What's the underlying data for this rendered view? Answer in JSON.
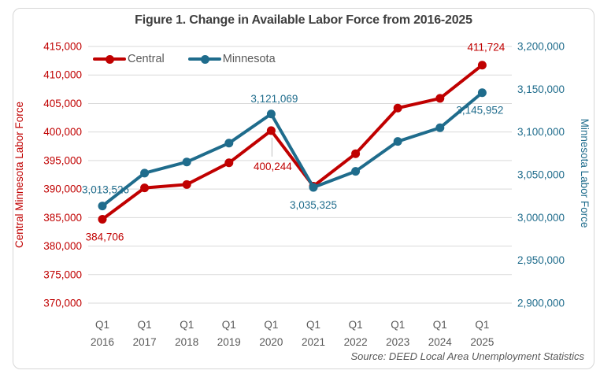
{
  "chart_data": {
    "type": "line",
    "title": "Figure 1. Change in Available Labor Force from 2016-2025",
    "source": "Source: DEED Local Area Unemployment Statistics",
    "x_prefix": "Q1",
    "categories": [
      "2016",
      "2017",
      "2018",
      "2019",
      "2020",
      "2021",
      "2022",
      "2023",
      "2024",
      "2025"
    ],
    "grid": true,
    "legend_position": "top-left",
    "colors": {
      "grid": "#D9D9D9",
      "text_gray": "#595959",
      "leader": "#BFBFBF"
    },
    "left_axis": {
      "title": "Central Minnesota Labor Force",
      "min": 370000,
      "max": 415000,
      "step": 5000,
      "color": "#C00000"
    },
    "right_axis": {
      "title": "Minnesota Labor Force",
      "min": 2900000,
      "max": 3200000,
      "step": 50000,
      "color": "#1F6C8C"
    },
    "series": [
      {
        "name": "Central",
        "axis": "left",
        "color": "#C00000",
        "values": [
          384706,
          390200,
          390800,
          394600,
          400244,
          390500,
          396200,
          404200,
          405900,
          411724
        ],
        "labeled_points": [
          {
            "index": 0,
            "text": "384,706",
            "dx": 3,
            "dy": 23
          },
          {
            "index": 4,
            "text": "400,244",
            "dx": 2,
            "dy": 46,
            "leader": true
          },
          {
            "index": 9,
            "text": "411,724",
            "dx": 5,
            "dy": -22
          }
        ]
      },
      {
        "name": "Minnesota",
        "axis": "right",
        "color": "#1F6C8C",
        "values": [
          3013526,
          3052000,
          3065000,
          3087000,
          3121069,
          3035325,
          3054000,
          3089000,
          3105000,
          3145952
        ],
        "labeled_points": [
          {
            "index": 0,
            "text": "3,013,526",
            "dx": 4,
            "dy": -20
          },
          {
            "index": 4,
            "text": "3,121,069",
            "dx": 4,
            "dy": -19
          },
          {
            "index": 5,
            "text": "3,035,325",
            "dx": 0,
            "dy": 23
          },
          {
            "index": 9,
            "text": "3,145,952",
            "dx": -3,
            "dy": 23
          }
        ]
      }
    ]
  }
}
